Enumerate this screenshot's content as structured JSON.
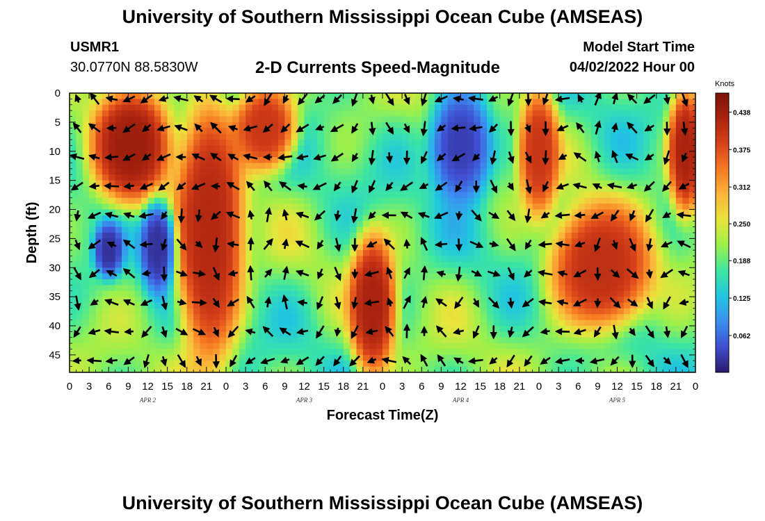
{
  "header": {
    "title": "University of Southern Mississippi Ocean Cube (AMSEAS)",
    "station": "USMR1",
    "location": "30.0770N  88.5830W",
    "plot_title": "2-D Currents Speed-Magnitude",
    "model_label": "Model Start Time",
    "model_time": "04/02/2022 Hour 00"
  },
  "footer": {
    "title": "University of Southern Mississippi Ocean Cube (AMSEAS)"
  },
  "chart_data": {
    "type": "heatmap",
    "title": "2-D Currents Speed-Magnitude",
    "xlabel": "Forecast Time(Z)",
    "ylabel": "Depth (ft)",
    "x_tick_labels": [
      "0",
      "3",
      "6",
      "9",
      "12",
      "15",
      "18",
      "21",
      "0",
      "3",
      "6",
      "9",
      "12",
      "15",
      "18",
      "21",
      "0",
      "3",
      "6",
      "9",
      "12",
      "15",
      "18",
      "21",
      "0",
      "3",
      "6",
      "9",
      "12",
      "15",
      "18",
      "21",
      "0"
    ],
    "day_labels": [
      {
        "label": "APR 2",
        "hour": 12
      },
      {
        "label": "APR 3",
        "hour": 36
      },
      {
        "label": "APR 4",
        "hour": 60
      },
      {
        "label": "APR 5",
        "hour": 84
      }
    ],
    "xlim": [
      0,
      96
    ],
    "y_ticks": [
      0,
      5,
      10,
      15,
      20,
      25,
      30,
      35,
      40,
      45
    ],
    "ylim": [
      0,
      48
    ],
    "y_inverted": true,
    "colorbar": {
      "unit": "Knots",
      "ticks": [
        "0.438",
        "0.375",
        "0.312",
        "0.250",
        "0.188",
        "0.125",
        "0.062"
      ],
      "range": [
        0,
        0.47
      ],
      "colors": [
        "#2b1a6b",
        "#3f4fd1",
        "#3b8ff0",
        "#20c6e0",
        "#3ee6a0",
        "#9af04c",
        "#e8e53a",
        "#fbb53a",
        "#f57a22",
        "#d8421a",
        "#ac2410",
        "#7a1208"
      ]
    },
    "speed_features_knots": [
      {
        "hour_start": 4,
        "hour_end": 15,
        "depth_start": 0,
        "depth_end": 18,
        "speed": 0.44
      },
      {
        "hour_start": 17,
        "hour_end": 26,
        "depth_start": 0,
        "depth_end": 48,
        "speed": 0.42
      },
      {
        "hour_start": 26,
        "hour_end": 34,
        "depth_start": 0,
        "depth_end": 12,
        "speed": 0.4
      },
      {
        "hour_start": 5,
        "hour_end": 7,
        "depth_start": 24,
        "depth_end": 30,
        "speed": 0.02
      },
      {
        "hour_start": 12,
        "hour_end": 15,
        "depth_start": 20,
        "depth_end": 33,
        "speed": 0.02
      },
      {
        "hour_start": 44,
        "hour_end": 49,
        "depth_start": 25,
        "depth_end": 48,
        "speed": 0.43
      },
      {
        "hour_start": 56,
        "hour_end": 64,
        "depth_start": 0,
        "depth_end": 18,
        "speed": 0.03
      },
      {
        "hour_start": 70,
        "hour_end": 74,
        "depth_start": 0,
        "depth_end": 20,
        "speed": 0.4
      },
      {
        "hour_start": 74,
        "hour_end": 89,
        "depth_start": 20,
        "depth_end": 40,
        "speed": 0.41
      },
      {
        "hour_start": 93,
        "hour_end": 96,
        "depth_start": 0,
        "depth_end": 20,
        "speed": 0.43
      }
    ]
  }
}
